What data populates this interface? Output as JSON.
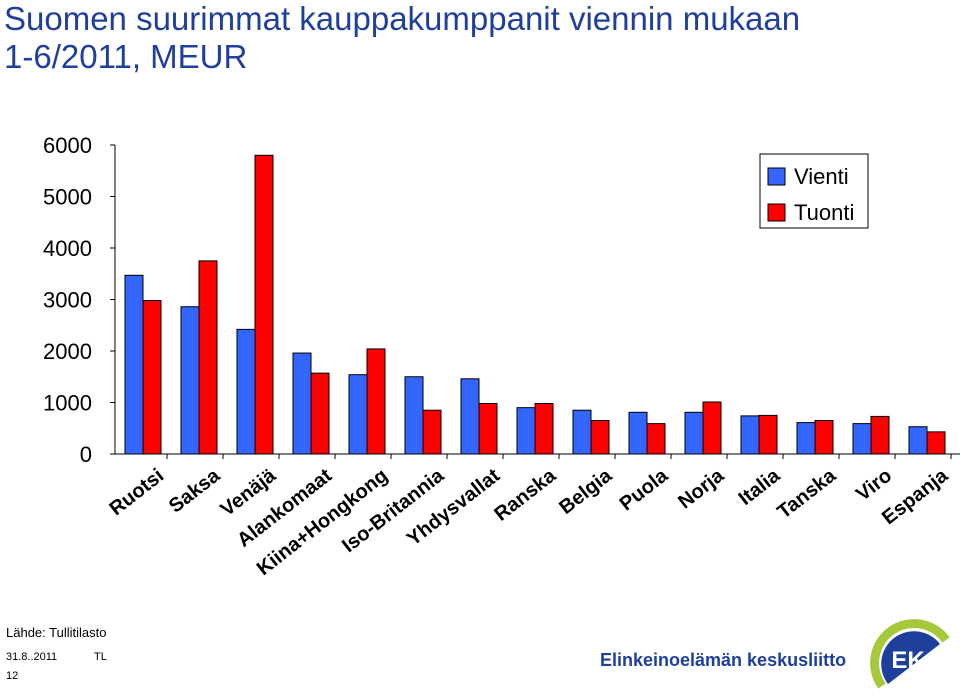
{
  "header": {
    "title_line1": "Suomen suurimmat kauppakumppanit viennin mukaan",
    "title_line2": "1-6/2011, MEUR"
  },
  "chart_data": {
    "type": "bar",
    "categories": [
      "Ruotsi",
      "Saksa",
      "Venäjä",
      "Alankomaat",
      "Kiina+Hongkong",
      "Iso-Britannia",
      "Yhdysvallat",
      "Ranska",
      "Belgia",
      "Puola",
      "Norja",
      "Italia",
      "Tanska",
      "Viro",
      "Espanja"
    ],
    "series": [
      {
        "name": "Vienti",
        "color": "#3366ff",
        "values": [
          3470,
          2860,
          2420,
          1960,
          1540,
          1500,
          1460,
          900,
          850,
          810,
          810,
          740,
          610,
          590,
          530
        ]
      },
      {
        "name": "Tuonti",
        "color": "#ff0000",
        "values": [
          2980,
          3750,
          5800,
          1570,
          2040,
          850,
          980,
          980,
          650,
          590,
          1010,
          750,
          650,
          730,
          430
        ]
      }
    ],
    "yticks": [
      0,
      1000,
      2000,
      3000,
      4000,
      5000,
      6000
    ],
    "ylim": [
      0,
      6000
    ],
    "legend_position": "top-right",
    "grid": false
  },
  "footer": {
    "source": "Lähde: Tullitilasto",
    "date": "31.8..2011",
    "author": "TL",
    "page": "12"
  },
  "logo": {
    "text": "Elinkeinoelämän keskusliitto",
    "mark": "EK"
  }
}
